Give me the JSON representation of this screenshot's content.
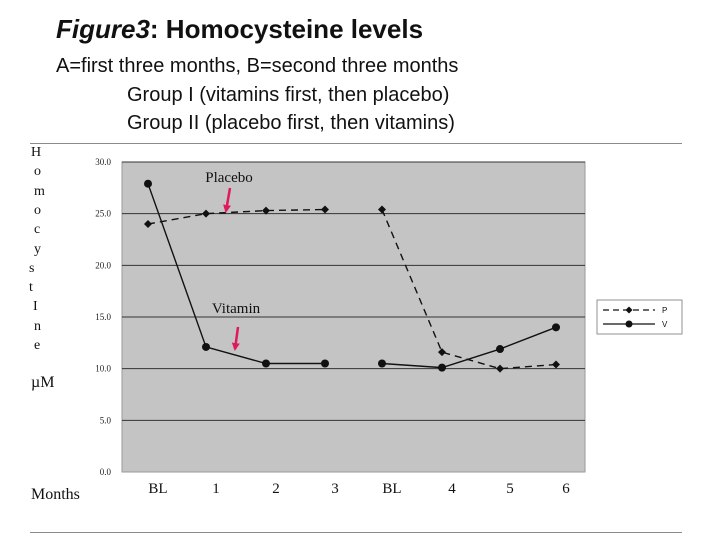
{
  "header": {
    "fig_label": "Figure3",
    "title_rest": ": Homocysteine levels",
    "subtitle_1": "A=first three months, B=second three months",
    "subtitle_2": "Group I (vitamins first, then placebo)",
    "subtitle_3": "Group II (placebo first, then vitamins)"
  },
  "axis": {
    "y_letters": [
      "H",
      "o",
      "m",
      "o",
      "c",
      "y",
      "s",
      "t",
      "I",
      "n",
      "e"
    ],
    "y_unit": "µM",
    "x_title": "Months"
  },
  "chart_data": {
    "type": "line",
    "ylim": [
      0,
      30
    ],
    "y_ticks": [
      "0.0",
      "5.0",
      "10.0",
      "15.0",
      "20.0",
      "25.0",
      "30.0"
    ],
    "categories": [
      "BL",
      "1",
      "2",
      "3",
      "BL",
      "4",
      "5",
      "6"
    ],
    "grid": true,
    "legend_position": "right",
    "series": [
      {
        "name": "P",
        "style": "dashed",
        "marker": "diamond",
        "segments": [
          [
            24.0,
            25.0,
            25.3,
            25.4
          ],
          [
            25.4,
            11.6,
            10.0,
            10.4
          ]
        ]
      },
      {
        "name": "V",
        "style": "solid",
        "marker": "circle",
        "segments": [
          [
            27.9,
            12.1,
            10.5,
            10.5
          ],
          [
            10.5,
            10.1,
            11.9,
            14.0
          ]
        ]
      }
    ],
    "annotations": [
      {
        "text": "Placebo",
        "x_index": 1,
        "y": 28.5
      },
      {
        "text": "Vitamin",
        "x_index": 1,
        "y": 15.5
      }
    ],
    "colors": {
      "plot_bg": "#c4c4c4",
      "line": "#111111",
      "arrow": "#e0195a"
    }
  }
}
